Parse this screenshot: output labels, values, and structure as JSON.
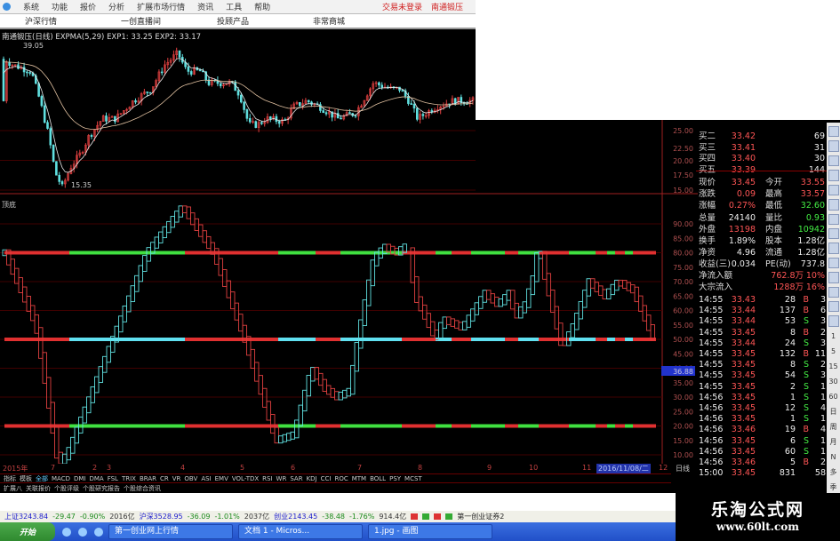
{
  "menu": {
    "items": [
      "系统",
      "功能",
      "报价",
      "分析",
      "扩展市场行情",
      "资讯",
      "工具",
      "帮助"
    ],
    "login": "交易未登录",
    "stock": "南通锻压"
  },
  "nav": {
    "items": [
      "沪深行情",
      "一创直播间",
      "投顾产品",
      "非常商城"
    ]
  },
  "chart": {
    "title": "南通锻压(日线) EXPMA(5,29) EXP1: 33.25 EXP2: 33.17",
    "high_label": "39.05",
    "low_label": "15.35",
    "indicator_label": "顶底",
    "price_axis": [
      "25.00",
      "22.50",
      "20.00",
      "17.50",
      "15.00"
    ],
    "ind_axis": [
      "90.00",
      "85.00",
      "80.00",
      "75.00",
      "70.00",
      "65.00",
      "60.00",
      "55.00",
      "50.00",
      "45.00",
      "40.00",
      "35.00",
      "30.00",
      "25.00",
      "20.00",
      "15.00",
      "10.00"
    ],
    "cursor_value": "36.88",
    "price_path": [
      [
        5,
        37
      ],
      [
        15,
        36
      ],
      [
        35,
        35
      ],
      [
        45,
        30
      ],
      [
        55,
        24
      ],
      [
        62,
        18
      ],
      [
        70,
        15.5
      ],
      [
        80,
        19
      ],
      [
        90,
        21
      ],
      [
        100,
        24
      ],
      [
        115,
        27
      ],
      [
        130,
        27
      ],
      [
        150,
        30
      ],
      [
        170,
        32
      ],
      [
        185,
        36
      ],
      [
        200,
        38
      ],
      [
        210,
        35
      ],
      [
        225,
        35
      ],
      [
        235,
        33
      ],
      [
        245,
        33
      ],
      [
        260,
        33
      ],
      [
        270,
        31
      ],
      [
        280,
        26
      ],
      [
        290,
        26
      ],
      [
        300,
        27
      ],
      [
        320,
        26.5
      ],
      [
        330,
        29
      ],
      [
        345,
        30
      ],
      [
        360,
        29
      ],
      [
        380,
        27
      ],
      [
        400,
        28
      ],
      [
        420,
        33
      ],
      [
        440,
        32
      ],
      [
        450,
        32
      ],
      [
        460,
        30
      ],
      [
        470,
        27
      ],
      [
        480,
        28
      ],
      [
        490,
        29
      ],
      [
        510,
        30
      ],
      [
        535,
        30
      ]
    ],
    "ind_path": [
      [
        5,
        80
      ],
      [
        40,
        55
      ],
      [
        65,
        7
      ],
      [
        75,
        10
      ],
      [
        120,
        45
      ],
      [
        165,
        80
      ],
      [
        205,
        96
      ],
      [
        240,
        80
      ],
      [
        275,
        50
      ],
      [
        310,
        15
      ],
      [
        330,
        17
      ],
      [
        350,
        40
      ],
      [
        365,
        33
      ],
      [
        378,
        30
      ],
      [
        392,
        32
      ],
      [
        405,
        55
      ],
      [
        420,
        78
      ],
      [
        432,
        82
      ],
      [
        445,
        80
      ],
      [
        455,
        82
      ],
      [
        462,
        80
      ],
      [
        465,
        66
      ],
      [
        490,
        50
      ],
      [
        498,
        57
      ],
      [
        520,
        54
      ],
      [
        545,
        66
      ],
      [
        560,
        62
      ],
      [
        572,
        66
      ],
      [
        580,
        58
      ],
      [
        590,
        62
      ],
      [
        600,
        72
      ],
      [
        606,
        84
      ],
      [
        610,
        75
      ],
      [
        632,
        47
      ],
      [
        645,
        55
      ],
      [
        662,
        70
      ],
      [
        680,
        65
      ],
      [
        695,
        70
      ],
      [
        712,
        67
      ],
      [
        735,
        50
      ]
    ],
    "level_lines": [
      80,
      50,
      20
    ],
    "segments": [
      [
        5,
        78,
        "r"
      ],
      [
        78,
        208,
        "g"
      ],
      [
        208,
        313,
        "r"
      ],
      [
        313,
        355,
        "g"
      ],
      [
        355,
        383,
        "r"
      ],
      [
        383,
        452,
        "g"
      ],
      [
        452,
        490,
        "r"
      ],
      [
        490,
        508,
        "g"
      ],
      [
        508,
        530,
        "r"
      ],
      [
        530,
        568,
        "g"
      ],
      [
        568,
        583,
        "r"
      ],
      [
        583,
        606,
        "g"
      ],
      [
        606,
        640,
        "r"
      ],
      [
        640,
        670,
        "g"
      ],
      [
        670,
        683,
        "r"
      ],
      [
        683,
        692,
        "g"
      ],
      [
        692,
        703,
        "r"
      ],
      [
        703,
        712,
        "g"
      ],
      [
        712,
        738,
        "r"
      ]
    ],
    "colors": {
      "up": "#e04040",
      "down": "#60e0e0",
      "exp1": "#e8e8e8",
      "exp2": "#e0c0a0",
      "line_red": "#e03030",
      "line_green": "#40e040",
      "line_cyan": "#60e0f0",
      "grid": "#400000",
      "border": "#a02020"
    }
  },
  "xaxis": {
    "labels": [
      "2015年",
      "7",
      "2",
      "3",
      "4",
      "5",
      "6",
      "7",
      "8",
      "9",
      "10",
      "11",
      "12"
    ],
    "date": "2016/11/08/二",
    "period": "日线"
  },
  "quote": {
    "bids": [
      [
        "买二",
        "33.42",
        "69"
      ],
      [
        "买三",
        "33.41",
        "31"
      ],
      [
        "买四",
        "33.40",
        "30"
      ],
      [
        "买五",
        "33.39",
        "144"
      ]
    ],
    "stats": [
      [
        "现价",
        "33.45",
        "今开",
        "33.55"
      ],
      [
        "涨跌",
        "0.09",
        "最高",
        "33.57"
      ],
      [
        "涨幅",
        "0.27%",
        "最低",
        "32.60"
      ],
      [
        "总量",
        "24140",
        "量比",
        "0.93"
      ],
      [
        "外盘",
        "13198",
        "内盘",
        "10942"
      ],
      [
        "换手",
        "1.89%",
        "股本",
        "1.28亿"
      ],
      [
        "净资",
        "4.96",
        "流通",
        "1.28亿"
      ],
      [
        "收益(三)",
        "0.034",
        "PE(动)",
        "737.8"
      ]
    ],
    "flows": [
      [
        "净流入额",
        "762.8万",
        "10%"
      ],
      [
        "大宗流入",
        "1288万",
        "16%"
      ]
    ],
    "ticks": [
      [
        "14:55",
        "33.43",
        "28",
        "B",
        "3"
      ],
      [
        "14:55",
        "33.44",
        "137",
        "B",
        "6"
      ],
      [
        "14:55",
        "33.44",
        "53",
        "S",
        "3"
      ],
      [
        "14:55",
        "33.45",
        "8",
        "B",
        "2"
      ],
      [
        "14:55",
        "33.44",
        "24",
        "S",
        "3"
      ],
      [
        "14:55",
        "33.45",
        "132",
        "B",
        "11"
      ],
      [
        "14:55",
        "33.45",
        "8",
        "S",
        "2"
      ],
      [
        "14:55",
        "33.45",
        "54",
        "S",
        "3"
      ],
      [
        "14:55",
        "33.45",
        "2",
        "S",
        "1"
      ],
      [
        "14:56",
        "33.45",
        "1",
        "S",
        "1"
      ],
      [
        "14:56",
        "33.45",
        "12",
        "S",
        "4"
      ],
      [
        "14:56",
        "33.45",
        "1",
        "S",
        "1"
      ],
      [
        "14:56",
        "33.46",
        "19",
        "B",
        "4"
      ],
      [
        "14:56",
        "33.45",
        "6",
        "S",
        "1"
      ],
      [
        "14:56",
        "33.45",
        "60",
        "S",
        "1"
      ],
      [
        "14:56",
        "33.46",
        "5",
        "B",
        "2"
      ],
      [
        "15:00",
        "33.45",
        "831",
        "",
        "58"
      ]
    ]
  },
  "toolbar": {
    "periods": [
      "1",
      "5",
      "15",
      "30",
      "60",
      "日",
      "周",
      "月",
      "N",
      "多",
      "季"
    ]
  },
  "indicator_tabs": [
    "指标",
    "模板",
    "全部",
    "MACD",
    "DMI",
    "DMA",
    "FSL",
    "TRIX",
    "BRAR",
    "CR",
    "VR",
    "OBV",
    "ASI",
    "EMV",
    "VOL-TDX",
    "RSI",
    "WR",
    "SAR",
    "KDJ",
    "CCI",
    "ROC",
    "MTM",
    "BOLL",
    "PSY",
    "MCST"
  ],
  "ext_tabs": [
    "扩展八",
    "关联报价",
    "个股评级",
    "个股研究报告",
    "个股综合资讯"
  ],
  "status": {
    "items": [
      "上证3243.84",
      "-29.47",
      "-0.90%",
      "2016亿",
      "沪深3528.95",
      "-36.09",
      "-1.01%",
      "2037亿",
      "创业2143.45",
      "-38.48",
      "-1.76%",
      "914.4亿"
    ],
    "broker": "第一创业证券2"
  },
  "taskbar": {
    "start": "开始",
    "tasks": [
      "第一创业网上行情",
      "文档 1 - Micros...",
      "1.jpg - 画图"
    ]
  },
  "watermark": {
    "name": "乐淘公式网",
    "url": "www.60lt.com"
  }
}
